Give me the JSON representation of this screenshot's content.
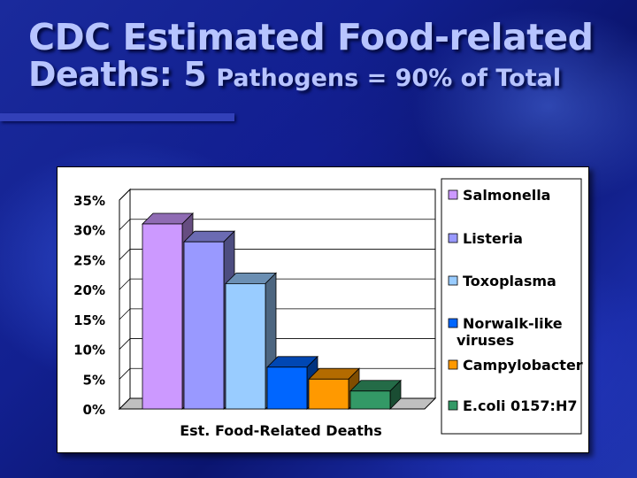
{
  "slide": {
    "title_line1": "CDC Estimated Food-related",
    "title_line2_a": "Deaths: 5",
    "title_line2_b": "Pathogens = 90% of Total"
  },
  "chart_data": {
    "type": "bar",
    "xlabel": "Est. Food-Related Deaths",
    "ylabel": "",
    "ylim": [
      0,
      0.35
    ],
    "yticks": [
      "0%",
      "5%",
      "10%",
      "15%",
      "20%",
      "25%",
      "30%",
      "35%"
    ],
    "categories": [
      "Est. Food-Related Deaths"
    ],
    "grid": true,
    "legend_position": "right",
    "three_d": true,
    "series": [
      {
        "name": "Salmonella",
        "values": [
          0.31
        ],
        "color": "#cc99ff"
      },
      {
        "name": "Listeria",
        "values": [
          0.28
        ],
        "color": "#9999ff"
      },
      {
        "name": "Toxoplasma",
        "values": [
          0.21
        ],
        "color": "#99ccff"
      },
      {
        "name": "Norwalk-like viruses",
        "name_lines": [
          "Norwalk-like",
          "viruses"
        ],
        "values": [
          0.07
        ],
        "color": "#0066ff"
      },
      {
        "name": "Campylobacter",
        "values": [
          0.05
        ],
        "color": "#ff9900"
      },
      {
        "name": "E.coli 0157:H7",
        "values": [
          0.03
        ],
        "color": "#339966"
      }
    ]
  }
}
